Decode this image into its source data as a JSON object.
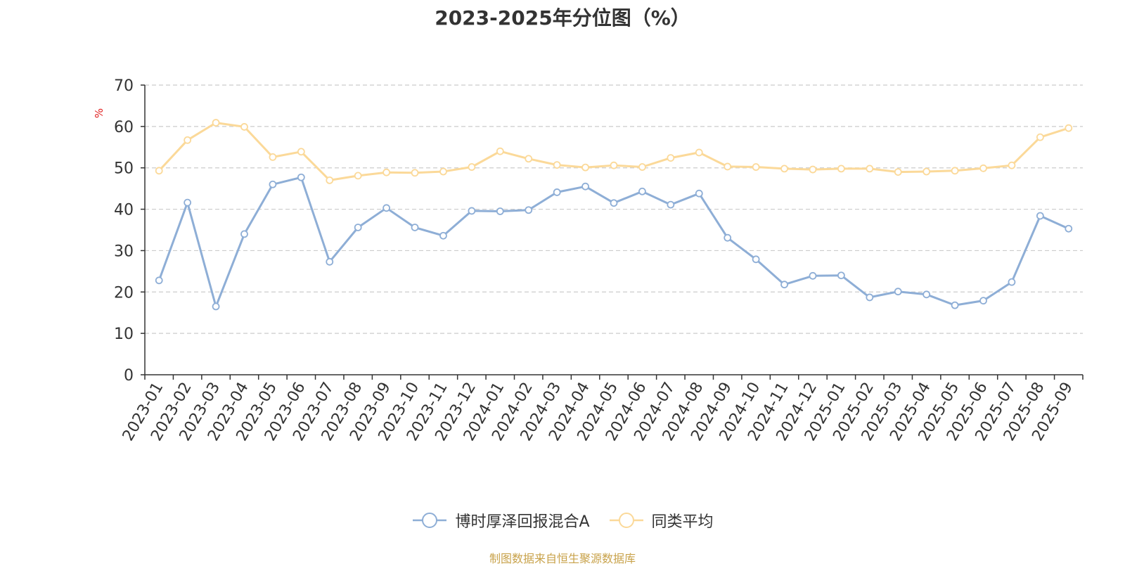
{
  "title": "2023-2025年分位图（%）",
  "source": "制图数据来自恒生聚源数据库",
  "chart_data": {
    "type": "line",
    "ylabel": "%",
    "ylim": [
      0,
      70
    ],
    "yticks": [
      0,
      10,
      20,
      30,
      40,
      50,
      60,
      70
    ],
    "grid": true,
    "legend_position": "bottom",
    "categories": [
      "2023-01",
      "2023-02",
      "2023-03",
      "2023-04",
      "2023-05",
      "2023-06",
      "2023-07",
      "2023-08",
      "2023-09",
      "2023-10",
      "2023-11",
      "2023-12",
      "2024-01",
      "2024-02",
      "2024-03",
      "2024-04",
      "2024-05",
      "2024-06",
      "2024-07",
      "2024-08",
      "2024-09",
      "2024-10",
      "2024-11",
      "2024-12",
      "2025-01",
      "2025-02",
      "2025-03",
      "2025-04",
      "2025-05",
      "2025-06",
      "2025-07",
      "2025-08",
      "2025-09"
    ],
    "series": [
      {
        "name": "博时厚泽回报混合A",
        "color": "#8eaed6",
        "values": [
          22.8,
          41.6,
          16.5,
          34.0,
          46.0,
          47.7,
          27.3,
          35.6,
          40.3,
          35.6,
          33.6,
          39.6,
          39.5,
          39.8,
          44.1,
          45.5,
          41.5,
          44.3,
          41.1,
          43.8,
          33.1,
          27.9,
          21.8,
          23.9,
          24.0,
          18.7,
          20.1,
          19.4,
          16.8,
          17.9,
          22.4,
          38.4,
          35.3
        ]
      },
      {
        "name": "同类平均",
        "color": "#fbd999",
        "values": [
          49.3,
          56.7,
          60.9,
          59.9,
          52.6,
          53.9,
          47.0,
          48.1,
          48.9,
          48.8,
          49.1,
          50.2,
          54.0,
          52.2,
          50.7,
          50.1,
          50.6,
          50.2,
          52.4,
          53.7,
          50.3,
          50.2,
          49.8,
          49.6,
          49.8,
          49.8,
          49.0,
          49.1,
          49.3,
          49.9,
          50.6,
          57.4,
          59.6
        ]
      }
    ]
  }
}
